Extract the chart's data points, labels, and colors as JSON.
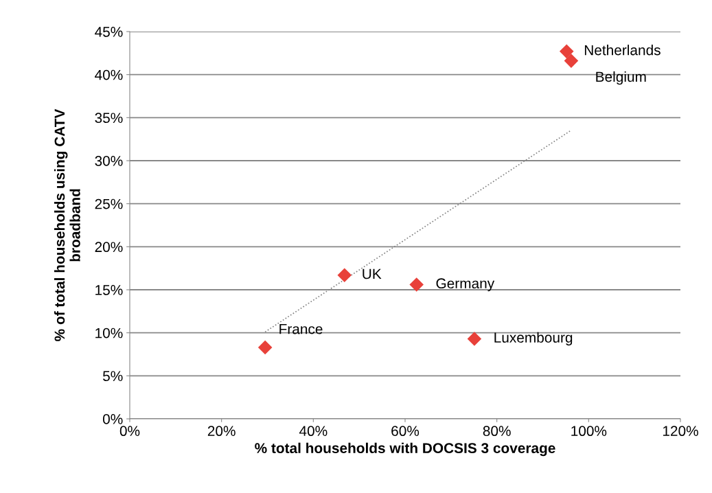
{
  "chart_data": {
    "type": "scatter",
    "xlabel": "% total households with DOCSIS 3 coverage",
    "ylabel": "% of total households using CATV\nbroadband",
    "series": [
      {
        "color": "#e8413a",
        "marker": "diamond",
        "x": [
          95.2,
          96.2,
          46.8,
          62.5,
          29.5,
          75.1
        ],
        "values": [
          42.7,
          41.6,
          16.7,
          15.6,
          8.3,
          9.3
        ]
      },
      {
        "type": "line",
        "color": "#808080",
        "line_style": "dotted",
        "marker": "none",
        "x": [
          29.5,
          96.1
        ],
        "values": [
          10.1,
          33.5
        ]
      }
    ],
    "annotations": [
      {
        "text": "Netherlands",
        "x": 95.2,
        "y": 42.7
      },
      {
        "text": "Belgium",
        "x": 96.2,
        "y": 41.6
      },
      {
        "text": "UK",
        "x": 46.8,
        "y": 16.7
      },
      {
        "text": "Germany",
        "x": 62.5,
        "y": 15.6
      },
      {
        "text": "France",
        "x": 29.5,
        "y": 8.3
      },
      {
        "text": "Luxembourg",
        "x": 75.1,
        "y": 9.3
      }
    ],
    "xlim": [
      0,
      120
    ],
    "ylim": [
      0,
      45
    ],
    "xticks": [
      {
        "value": 0,
        "label": "0%"
      },
      {
        "value": 20,
        "label": "20%"
      },
      {
        "value": 40,
        "label": "40%"
      },
      {
        "value": 60,
        "label": "60%"
      },
      {
        "value": 80,
        "label": "80%"
      },
      {
        "value": 100,
        "label": "100%"
      },
      {
        "value": 120,
        "label": "120%"
      }
    ],
    "yticks": [
      {
        "value": 0,
        "label": "0%"
      },
      {
        "value": 5,
        "label": "5%"
      },
      {
        "value": 10,
        "label": "10%"
      },
      {
        "value": 15,
        "label": "15%"
      },
      {
        "value": 20,
        "label": "20%"
      },
      {
        "value": 25,
        "label": "25%"
      },
      {
        "value": 30,
        "label": "30%"
      },
      {
        "value": 35,
        "label": "35%"
      },
      {
        "value": 40,
        "label": "40%"
      },
      {
        "value": 45,
        "label": "45%"
      }
    ],
    "grid": "y",
    "legend": false
  }
}
